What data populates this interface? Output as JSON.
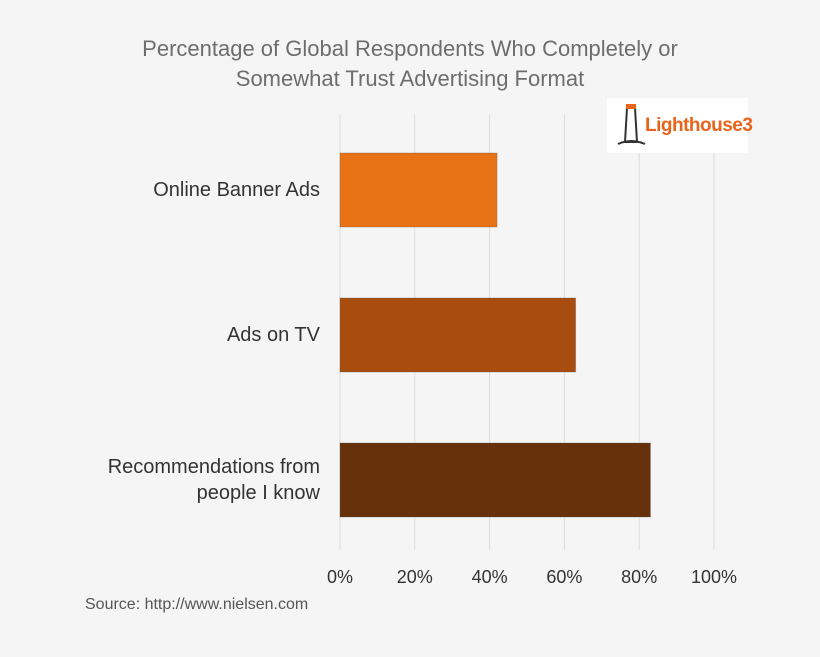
{
  "chart_data": {
    "type": "hbar",
    "title": "Percentage of Global Respondents Who Completely or Somewhat Trust Advertising Format",
    "categories": [
      "Online Banner Ads",
      "Ads on TV",
      "Recommendations from people I know"
    ],
    "values": [
      42,
      63,
      83
    ],
    "colors": [
      "#e87317",
      "#a84d0e",
      "#67310b"
    ],
    "xlim": [
      0,
      100
    ],
    "xticks": [
      {
        "value": 0,
        "label": "0%"
      },
      {
        "value": 20,
        "label": "20%"
      },
      {
        "value": 40,
        "label": "40%"
      },
      {
        "value": 60,
        "label": "60%"
      },
      {
        "value": 80,
        "label": "80%"
      },
      {
        "value": 100,
        "label": "100%"
      }
    ],
    "grid": true,
    "source": "Source: http://www.nielsen.com",
    "logo": "Lighthouse3"
  }
}
